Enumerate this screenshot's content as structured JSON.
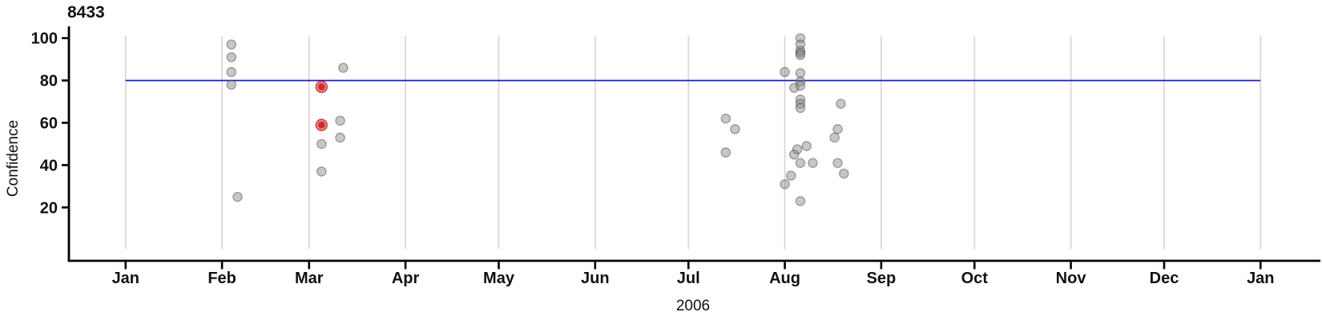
{
  "chart_data": {
    "type": "scatter",
    "title": "8433",
    "xlabel": "2006",
    "ylabel": "Confidence",
    "y_ticks": [
      20,
      40,
      60,
      80,
      100
    ],
    "ylim": [
      -6,
      106
    ],
    "x_unit": "day_of_year_2006",
    "xlim_days": [
      1,
      366
    ],
    "grid": "vertical-monthly",
    "legend": "none",
    "x_ticks": [
      {
        "label": "Jan",
        "day": 1
      },
      {
        "label": "Feb",
        "day": 32
      },
      {
        "label": "Mar",
        "day": 60
      },
      {
        "label": "Apr",
        "day": 91
      },
      {
        "label": "May",
        "day": 121
      },
      {
        "label": "Jun",
        "day": 152
      },
      {
        "label": "Jul",
        "day": 182
      },
      {
        "label": "Aug",
        "day": 213
      },
      {
        "label": "Sep",
        "day": 244
      },
      {
        "label": "Oct",
        "day": 274
      },
      {
        "label": "Nov",
        "day": 305
      },
      {
        "label": "Dec",
        "day": 335
      },
      {
        "label": "Jan",
        "day": 366
      }
    ],
    "reference_line": {
      "orientation": "horizontal",
      "value": 80,
      "color": "#1c1ccd"
    },
    "colors": {
      "point_fill": "rgba(130,130,130,0.45)",
      "point_stroke": "rgba(80,80,80,0.5)",
      "highlight_fill": "rgba(225,55,55,0.6)",
      "highlight_stroke": "rgba(198,34,34,0.85)",
      "highlight_core": "rgba(190,24,24,0.8)",
      "grid": "#d9d9d9",
      "axis": "#000000"
    },
    "points": [
      {
        "day": 35,
        "value": 97
      },
      {
        "day": 35,
        "value": 91
      },
      {
        "day": 35,
        "value": 84
      },
      {
        "day": 35,
        "value": 78
      },
      {
        "day": 37,
        "value": 25
      },
      {
        "day": 64,
        "value": 77,
        "highlight": true
      },
      {
        "day": 64,
        "value": 59,
        "highlight": true
      },
      {
        "day": 64,
        "value": 50
      },
      {
        "day": 64,
        "value": 37
      },
      {
        "day": 70,
        "value": 61
      },
      {
        "day": 70,
        "value": 53
      },
      {
        "day": 71,
        "value": 86
      },
      {
        "day": 194,
        "value": 62
      },
      {
        "day": 194,
        "value": 46
      },
      {
        "day": 197,
        "value": 57
      },
      {
        "day": 213,
        "value": 84
      },
      {
        "day": 213,
        "value": 31
      },
      {
        "day": 215,
        "value": 35
      },
      {
        "day": 216,
        "value": 45
      },
      {
        "day": 216,
        "value": 76.5
      },
      {
        "day": 217,
        "value": 47.5
      },
      {
        "day": 218,
        "value": 100
      },
      {
        "day": 218,
        "value": 97
      },
      {
        "day": 218,
        "value": 94
      },
      {
        "day": 218,
        "value": 93
      },
      {
        "day": 218,
        "value": 92
      },
      {
        "day": 218,
        "value": 83.5
      },
      {
        "day": 218,
        "value": 79.5
      },
      {
        "day": 218,
        "value": 77.5
      },
      {
        "day": 218,
        "value": 71
      },
      {
        "day": 218,
        "value": 69
      },
      {
        "day": 218,
        "value": 67
      },
      {
        "day": 218,
        "value": 41
      },
      {
        "day": 218,
        "value": 23
      },
      {
        "day": 220,
        "value": 49
      },
      {
        "day": 222,
        "value": 41
      },
      {
        "day": 229,
        "value": 53
      },
      {
        "day": 230,
        "value": 57
      },
      {
        "day": 230,
        "value": 41
      },
      {
        "day": 231,
        "value": 69
      },
      {
        "day": 232,
        "value": 36
      }
    ]
  }
}
